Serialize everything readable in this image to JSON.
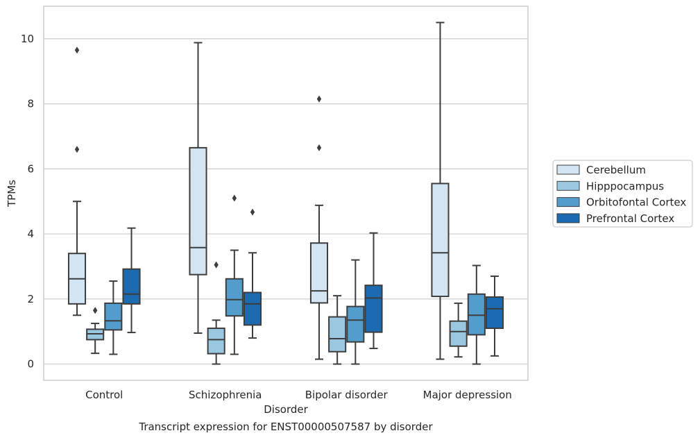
{
  "caption": "Transcript expression for ENST00000507587 by disorder",
  "chart_data": {
    "type": "box",
    "xlabel": "Disorder",
    "ylabel": "TPMs",
    "ylim": [
      -0.5,
      11.0
    ],
    "yticks": [
      0,
      2,
      4,
      6,
      8,
      10
    ],
    "grid": "horizontal",
    "legend_position": "right",
    "categories": [
      "Control",
      "Schizophrenia",
      "Bipolar disorder",
      "Major depression"
    ],
    "series": [
      {
        "name": "Cerebellum",
        "color": "#d3e4f3",
        "boxes": [
          {
            "whislo": 1.5,
            "q1": 1.85,
            "med": 2.62,
            "q3": 3.4,
            "whishi": 5.0,
            "fliers": [
              6.6,
              9.65
            ]
          },
          {
            "whislo": 0.95,
            "q1": 2.75,
            "med": 3.58,
            "q3": 6.65,
            "whishi": 9.88,
            "fliers": []
          },
          {
            "whislo": 0.15,
            "q1": 1.88,
            "med": 2.25,
            "q3": 3.72,
            "whishi": 4.88,
            "fliers": [
              6.65,
              8.15
            ]
          },
          {
            "whislo": 0.15,
            "q1": 2.08,
            "med": 3.42,
            "q3": 5.55,
            "whishi": 10.5,
            "fliers": []
          }
        ]
      },
      {
        "name": "Hipppocampus",
        "color": "#9ac8e0",
        "boxes": [
          {
            "whislo": 0.33,
            "q1": 0.75,
            "med": 0.93,
            "q3": 1.07,
            "whishi": 1.25,
            "fliers": [
              1.65
            ]
          },
          {
            "whislo": 0.0,
            "q1": 0.32,
            "med": 0.75,
            "q3": 1.1,
            "whishi": 1.35,
            "fliers": [
              3.05
            ]
          },
          {
            "whislo": 0.0,
            "q1": 0.38,
            "med": 0.78,
            "q3": 1.45,
            "whishi": 2.1,
            "fliers": []
          },
          {
            "whislo": 0.22,
            "q1": 0.55,
            "med": 1.0,
            "q3": 1.32,
            "whishi": 1.87,
            "fliers": []
          }
        ]
      },
      {
        "name": "Orbitofontal Cortex",
        "color": "#529dcc",
        "boxes": [
          {
            "whislo": 0.3,
            "q1": 1.05,
            "med": 1.33,
            "q3": 1.87,
            "whishi": 2.55,
            "fliers": []
          },
          {
            "whislo": 0.3,
            "q1": 1.48,
            "med": 1.98,
            "q3": 2.62,
            "whishi": 3.5,
            "fliers": [
              5.1
            ]
          },
          {
            "whislo": 0.0,
            "q1": 0.68,
            "med": 1.35,
            "q3": 1.77,
            "whishi": 3.2,
            "fliers": []
          },
          {
            "whislo": 0.0,
            "q1": 0.9,
            "med": 1.5,
            "q3": 2.15,
            "whishi": 3.03,
            "fliers": []
          }
        ]
      },
      {
        "name": "Prefrontal Cortex",
        "color": "#1c6aaf",
        "boxes": [
          {
            "whislo": 0.97,
            "q1": 1.85,
            "med": 2.15,
            "q3": 2.92,
            "whishi": 4.18,
            "fliers": []
          },
          {
            "whislo": 0.8,
            "q1": 1.2,
            "med": 1.85,
            "q3": 2.2,
            "whishi": 3.42,
            "fliers": [
              4.67
            ]
          },
          {
            "whislo": 0.48,
            "q1": 0.98,
            "med": 2.03,
            "q3": 2.42,
            "whishi": 4.03,
            "fliers": []
          },
          {
            "whislo": 0.25,
            "q1": 1.1,
            "med": 1.7,
            "q3": 2.06,
            "whishi": 2.7,
            "fliers": []
          }
        ]
      }
    ]
  }
}
